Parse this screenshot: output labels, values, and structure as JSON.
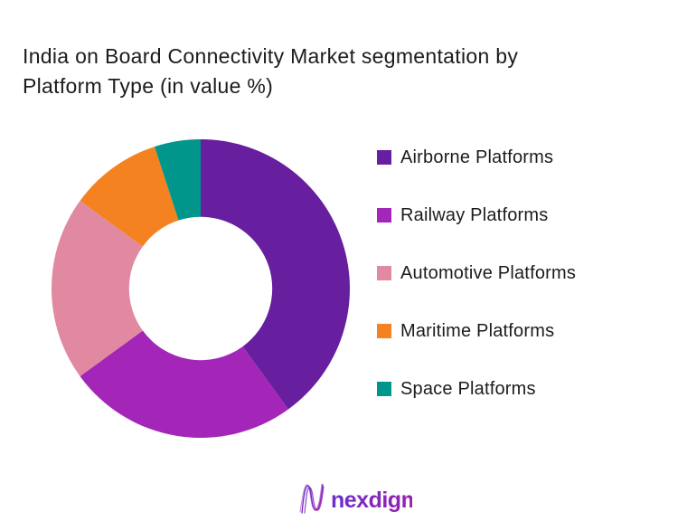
{
  "title": {
    "line1": "India on Board Connectivity Market segmentation by",
    "line2": "Platform Type (in value %)"
  },
  "chart_data": {
    "type": "pie",
    "subtype": "donut",
    "title": "India on Board Connectivity Market segmentation by Platform Type (in value %)",
    "value_unit": "%",
    "categories": [
      "Airborne Platforms",
      "Railway Platforms",
      "Automotive Platforms",
      "Maritime Platforms",
      "Space Platforms"
    ],
    "values": [
      40,
      25,
      20,
      10,
      5
    ],
    "colors": [
      "#671E9F",
      "#A326B8",
      "#E089A0",
      "#F58220",
      "#00968B"
    ],
    "start_angle_deg": 0,
    "direction": "clockwise",
    "inner_radius_ratio": 0.48,
    "legend_position": "right",
    "data_labels_visible": false
  },
  "logo": {
    "text": "nexdigm",
    "gradient_start": "#6A30C9",
    "gradient_end": "#A21CAF"
  }
}
